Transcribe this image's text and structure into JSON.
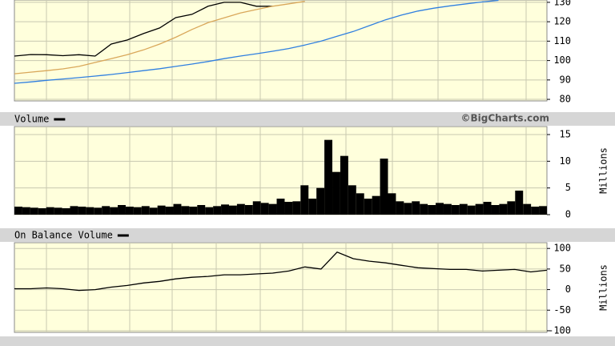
{
  "chart_data": [
    {
      "type": "line",
      "ylim": [
        79.2,
        131.2
      ],
      "yticks": [
        80,
        90,
        100,
        110,
        120,
        130
      ],
      "grid": true,
      "series": [
        {
          "color": "#000000",
          "values": [
            102.3,
            103.1,
            103,
            102.5,
            103,
            102.3,
            108.5,
            110.6,
            113.9,
            116.8,
            122.1,
            123.8,
            128,
            130,
            130,
            128,
            128,
            null,
            null,
            null,
            null,
            null,
            null,
            null,
            null,
            null,
            null,
            null,
            null,
            null,
            null,
            null,
            null,
            null
          ]
        },
        {
          "color": "#d9a75a",
          "values": [
            93.2,
            94,
            94.8,
            95.7,
            97,
            99,
            101,
            103,
            105.5,
            108.5,
            112,
            116,
            119.5,
            122,
            124.5,
            126.3,
            128,
            129.2,
            130.5,
            null,
            null,
            null,
            null,
            null,
            null,
            null,
            null,
            null,
            null,
            null,
            null,
            null,
            null,
            null
          ]
        },
        {
          "color": "#2f7fe0",
          "values": [
            88.3,
            89,
            89.8,
            90.5,
            91.2,
            92,
            92.8,
            93.8,
            94.8,
            95.8,
            97,
            98.2,
            99.5,
            101,
            102.3,
            103.5,
            104.8,
            106.2,
            108,
            110,
            112.5,
            115,
            118,
            121,
            123.5,
            125.5,
            127,
            128.2,
            129.2,
            130.2,
            131,
            null,
            null,
            null
          ]
        }
      ]
    },
    {
      "type": "bar",
      "ylim": [
        0,
        16.5
      ],
      "yticks": [
        0,
        5,
        10,
        15
      ],
      "grid": true,
      "ylabel": "Millions",
      "annotation": "©BigCharts.com",
      "series": [
        {
          "name": "Volume",
          "color": "#000000",
          "values": [
            1.5,
            1.4,
            1.3,
            1.2,
            1.4,
            1.3,
            1.2,
            1.6,
            1.5,
            1.4,
            1.3,
            1.6,
            1.4,
            1.8,
            1.5,
            1.4,
            1.6,
            1.3,
            1.7,
            1.5,
            2.0,
            1.6,
            1.5,
            1.8,
            1.4,
            1.6,
            1.9,
            1.7,
            2.0,
            1.8,
            2.5,
            2.2,
            2.0,
            3.0,
            2.4,
            2.5,
            5.5,
            3,
            5,
            14,
            8,
            11,
            5.5,
            4,
            3,
            3.5,
            10.5,
            4,
            2.5,
            2.2,
            2.5,
            2,
            1.8,
            2.2,
            2,
            1.8,
            2,
            1.7,
            2,
            2.4,
            1.8,
            2,
            2.5,
            4.5,
            2,
            1.5,
            1.6
          ]
        }
      ]
    },
    {
      "type": "line",
      "ylim": [
        -104,
        114
      ],
      "yticks": [
        -100,
        -50,
        0,
        50,
        100
      ],
      "grid": true,
      "ylabel": "Millions",
      "series": [
        {
          "name": "On Balance Volume",
          "color": "#000000",
          "values": [
            2,
            2,
            4,
            2,
            -2,
            0,
            6,
            10,
            16,
            20,
            26,
            30,
            32,
            36,
            36,
            38,
            40,
            45,
            55,
            50,
            91,
            75,
            69,
            65,
            59,
            53,
            51,
            49,
            49,
            45,
            47,
            49,
            43,
            47
          ]
        }
      ]
    }
  ]
}
